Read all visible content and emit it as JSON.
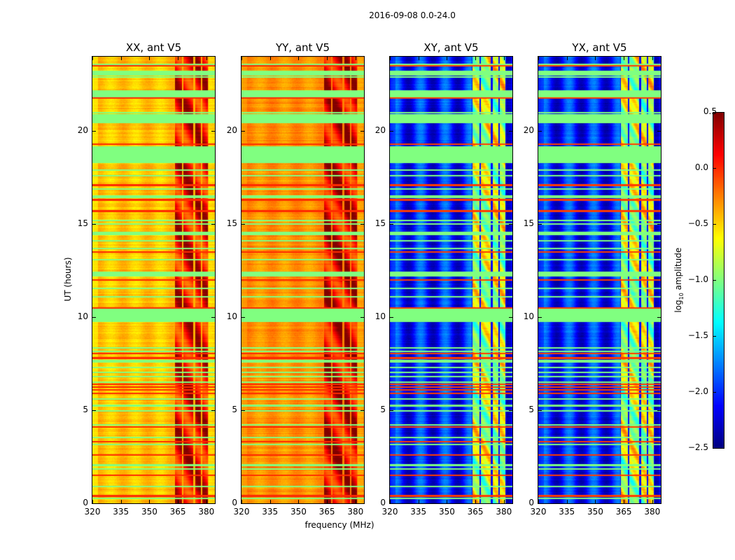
{
  "title": "2016-09-08 0.0-24.0",
  "chart_data": {
    "type": "heatmap",
    "title": "2016-09-08 0.0-24.0",
    "xlabel": "frequency (MHz)",
    "ylabel": "UT (hours)",
    "xlim": [
      320,
      384.5
    ],
    "ylim": [
      0,
      24
    ],
    "xticks": [
      320,
      335,
      350,
      365,
      380
    ],
    "yticks": [
      0,
      5,
      10,
      15,
      20
    ],
    "colorbar": {
      "label_main": "log",
      "label_sub": "10",
      "label_rest": " amplitude",
      "range": [
        -2.5,
        0.5
      ],
      "ticks": [
        "0.5",
        "0.0",
        "−0.5",
        "−1.0",
        "−1.5",
        "−2.0",
        "−2.5"
      ],
      "colormap": "jet"
    },
    "flagged_value": -1.0,
    "flagged_hours": [
      [
        9.75,
        10.45
      ],
      [
        18.3,
        19.2
      ],
      [
        20.5,
        20.9
      ],
      [
        21.8,
        22.2
      ],
      [
        23.0,
        23.25
      ],
      [
        12.2,
        12.45
      ],
      [
        14.4,
        14.6
      ],
      [
        16.4,
        16.55
      ],
      [
        7.55,
        7.7
      ]
    ],
    "green_lines": [
      0.25,
      0.9,
      1.85,
      2.05,
      3.15,
      3.55,
      4.2,
      4.95,
      5.25,
      5.6,
      6.5,
      6.8,
      7.05,
      7.3,
      8.15,
      8.35,
      11.1,
      11.55,
      13.1,
      13.7,
      14.1,
      15.0,
      15.2,
      16.9,
      17.6,
      17.9,
      20.45,
      21.0,
      22.9,
      23.6
    ],
    "red_lines": [
      0.4,
      1.5,
      2.6,
      3.3,
      4.1,
      5.9,
      6.1,
      6.25,
      6.4,
      7.8,
      8.05,
      10.5,
      12.0,
      13.5,
      15.7,
      16.3,
      17.1,
      19.3,
      21.8,
      23.5
    ],
    "panels": [
      {
        "title": "XX, ant V5",
        "base": -0.45,
        "ripple": 0.08,
        "rfi_level": 0.05,
        "edge_left": -0.7
      },
      {
        "title": "YY, ant V5",
        "base": -0.3,
        "ripple": 0.07,
        "rfi_level": 0.1,
        "edge_left": -0.4
      },
      {
        "title": "XY, ant V5",
        "base": -2.05,
        "ripple": 0.3,
        "rfi_level": -0.8,
        "edge_left": -2.1
      },
      {
        "title": "YX, ant V5",
        "base": -2.05,
        "ripple": 0.3,
        "rfi_level": -0.8,
        "edge_left": -2.1
      }
    ],
    "rfi_bands_mhz": [
      [
        363.5,
        367.3
      ],
      [
        368.0,
        373.2
      ],
      [
        374.0,
        377.3
      ],
      [
        378.0,
        380.8
      ]
    ]
  }
}
